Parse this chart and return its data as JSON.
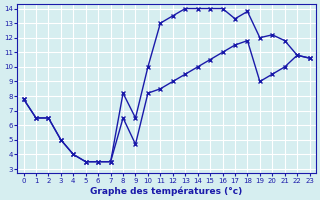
{
  "xlabel": "Graphe des températures (°c)",
  "bg_color": "#d6eef0",
  "grid_color": "#ffffff",
  "line_color": "#1a1aaa",
  "xlim": [
    0,
    23
  ],
  "ylim": [
    3,
    14
  ],
  "xticks": [
    0,
    1,
    2,
    3,
    4,
    5,
    6,
    7,
    8,
    9,
    10,
    11,
    12,
    13,
    14,
    15,
    16,
    17,
    18,
    19,
    20,
    21,
    22,
    23
  ],
  "yticks": [
    3,
    4,
    5,
    6,
    7,
    8,
    9,
    10,
    11,
    12,
    13,
    14
  ],
  "line1_x": [
    0,
    1,
    2,
    3,
    4,
    5,
    6,
    7,
    8,
    9,
    10,
    11,
    12,
    13,
    14,
    15,
    16,
    17,
    18,
    19,
    20,
    21,
    22,
    23
  ],
  "line1_y": [
    7.8,
    6.5,
    6.5,
    5.0,
    4.0,
    3.5,
    3.5,
    3.5,
    8.2,
    6.5,
    10.0,
    13.0,
    13.5,
    14.0,
    14.0,
    14.0,
    14.0,
    13.3,
    13.8,
    12.0,
    12.2,
    11.8,
    10.8,
    10.6
  ],
  "line2_x": [
    0,
    1,
    2,
    3,
    4,
    5,
    6,
    7,
    8,
    9,
    10,
    11,
    12,
    13,
    14,
    15,
    16,
    17,
    18,
    19,
    20,
    21,
    22,
    23
  ],
  "line2_y": [
    7.8,
    6.5,
    6.5,
    5.0,
    4.0,
    3.5,
    3.5,
    3.5,
    6.5,
    4.7,
    8.2,
    8.5,
    9.0,
    9.5,
    10.0,
    10.5,
    11.0,
    11.5,
    11.8,
    9.0,
    9.5,
    10.0,
    10.8,
    10.6
  ]
}
